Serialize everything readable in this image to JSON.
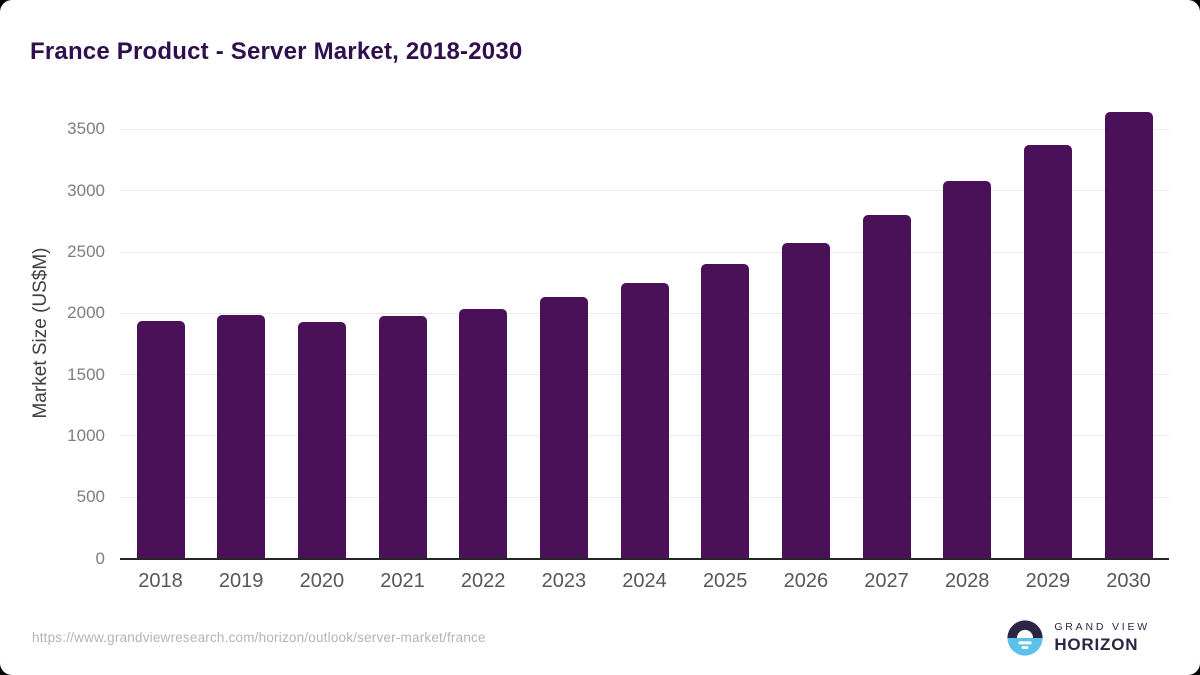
{
  "title": "France Product - Server Market, 2018-2030",
  "source_url": "https://www.grandviewresearch.com/horizon/outlook/server-market/france",
  "branding": {
    "line1": "GRAND VIEW",
    "line2": "HORIZON"
  },
  "colors": {
    "bar": "#4a1058",
    "title": "#2f0f4d",
    "axis": "#262626",
    "grid": "#ebebeb",
    "ytick": "#7d7e81",
    "xtick": "#56575a",
    "ylabel": "#3f3f41",
    "url": "#b4b4b4",
    "logo_dark": "#2e2444",
    "logo_blue": "#5ec1e9"
  },
  "chart_data": {
    "type": "bar",
    "title": "France Product - Server Market, 2018-2030",
    "categories": [
      2018,
      2019,
      2020,
      2021,
      2022,
      2023,
      2024,
      2025,
      2026,
      2027,
      2028,
      2029,
      2030
    ],
    "values": [
      1940,
      1990,
      1925,
      1975,
      2035,
      2135,
      2245,
      2400,
      2570,
      2805,
      3080,
      3370,
      3645
    ],
    "xlabel": "",
    "ylabel": "Market Size (US$M)",
    "yticks": [
      0,
      500,
      1000,
      1500,
      2000,
      2500,
      3000,
      3500
    ],
    "ylim": [
      0,
      3500
    ],
    "grid": true,
    "legend": false
  }
}
